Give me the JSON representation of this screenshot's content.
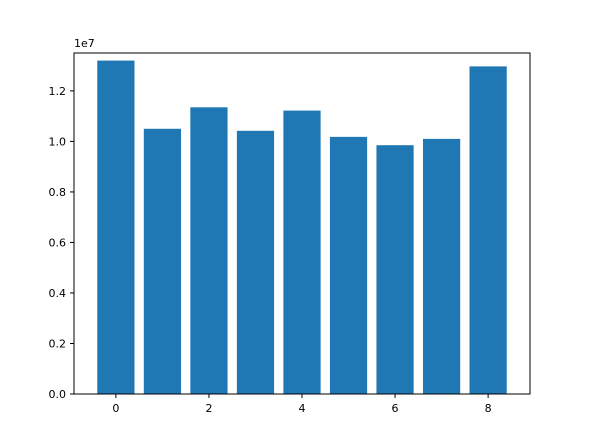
{
  "chart_data": {
    "type": "bar",
    "categories": [
      0,
      1,
      2,
      3,
      4,
      5,
      6,
      7,
      8
    ],
    "values": [
      13200000,
      10500000,
      11350000,
      10420000,
      11220000,
      10180000,
      9850000,
      10100000,
      12970000
    ],
    "xlim": [
      -0.9,
      8.9
    ],
    "ylim": [
      0,
      13500000
    ],
    "xticks": [
      0,
      2,
      4,
      6,
      8
    ],
    "xtick_labels": [
      "0",
      "2",
      "4",
      "6",
      "8"
    ],
    "yticks": [
      0,
      2000000,
      4000000,
      6000000,
      8000000,
      10000000,
      12000000
    ],
    "ytick_labels": [
      "0.0",
      "0.2",
      "0.4",
      "0.6",
      "0.8",
      "1.0",
      "1.2"
    ],
    "offset_label": "1e7",
    "title": "",
    "xlabel": "",
    "ylabel": "",
    "grid": false,
    "bar_color": "#1f77b4"
  }
}
